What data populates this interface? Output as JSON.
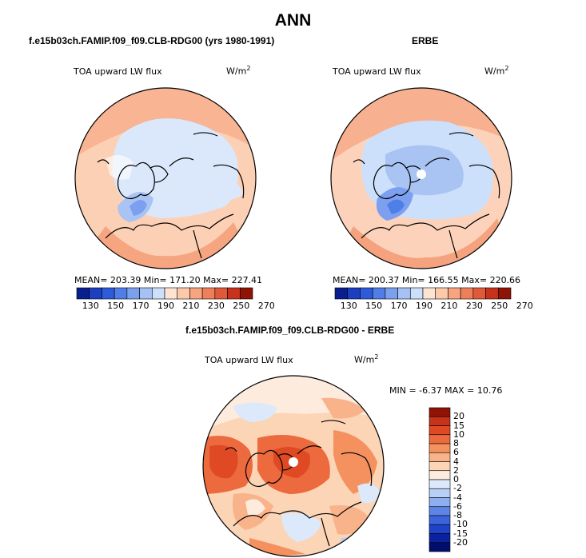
{
  "title": "ANN",
  "panels": [
    {
      "title": "f.e15b03ch.FAMIP.f09_f09.CLB-RDG00 (yrs 1980-1991)",
      "variable": "TOA upward LW flux",
      "units_base": "W/m",
      "units_exp": "2",
      "stats": "MEAN= 203.39   Min= 171.20   Max= 227.41",
      "colorbar_ticks": [
        "130",
        "150",
        "170",
        "190",
        "210",
        "230",
        "250",
        "270"
      ]
    },
    {
      "title": "ERBE",
      "variable": "TOA upward LW flux",
      "units_base": "W/m",
      "units_exp": "2",
      "stats": "MEAN= 200.37   Min= 166.55   Max= 220.66",
      "colorbar_ticks": [
        "130",
        "150",
        "170",
        "190",
        "210",
        "230",
        "250",
        "270"
      ]
    },
    {
      "title": "f.e15b03ch.FAMIP.f09_f09.CLB-RDG00 - ERBE",
      "variable": "TOA upward LW flux",
      "units_base": "W/m",
      "units_exp": "2",
      "stats": "MIN =   -6.37 MAX =   10.76",
      "colorbar_ticks": [
        "20",
        "15",
        "10",
        "8",
        "6",
        "4",
        "2",
        "0",
        "-2",
        "-4",
        "-6",
        "-8",
        "-10",
        "-15",
        "-20"
      ]
    }
  ],
  "colors": {
    "abs_scale": [
      "#0a1f8f",
      "#1b3fbf",
      "#2e5bd9",
      "#4f7ee6",
      "#7aa0ee",
      "#a6c2f5",
      "#cde0fb",
      "#fde4d2",
      "#fcc9ab",
      "#f8a47f",
      "#ef7f5a",
      "#e05a3a",
      "#c7321c",
      "#8f1405"
    ],
    "diff_scale": [
      "#8f1405",
      "#c7321c",
      "#df4a25",
      "#ec6a3e",
      "#f4915f",
      "#f9b38a",
      "#fcd4b6",
      "#fdebde",
      "#dce9fa",
      "#b9d0f6",
      "#8daef0",
      "#5d84e6",
      "#3a63dc",
      "#1e43c9",
      "#0a22a0",
      "#020e6e"
    ]
  }
}
